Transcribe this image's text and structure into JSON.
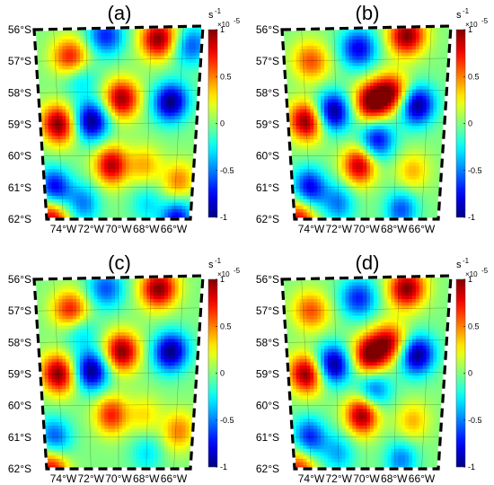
{
  "figure": {
    "panels": [
      {
        "label": "(a)",
        "blobs": [
          {
            "lon": -74.0,
            "lat": -59.0,
            "v": 1.0
          },
          {
            "lon": -71.8,
            "lat": -58.9,
            "v": -1.0
          },
          {
            "lon": -69.8,
            "lat": -58.2,
            "v": 0.95
          },
          {
            "lon": -66.6,
            "lat": -58.3,
            "v": -1.0
          },
          {
            "lon": -70.8,
            "lat": -56.2,
            "v": -0.7
          },
          {
            "lon": -67.5,
            "lat": -56.3,
            "v": 1.0
          },
          {
            "lon": -65.5,
            "lat": -56.5,
            "v": -0.6
          },
          {
            "lon": -73.0,
            "lat": -56.9,
            "v": 0.8
          },
          {
            "lon": -72.5,
            "lat": -57.5,
            "v": -0.4
          },
          {
            "lon": -70.5,
            "lat": -60.3,
            "v": 0.9
          },
          {
            "lon": -74.5,
            "lat": -61.0,
            "v": -0.8
          },
          {
            "lon": -74.8,
            "lat": -62.0,
            "v": 0.9
          },
          {
            "lon": -72.5,
            "lat": -61.5,
            "v": -0.5
          },
          {
            "lon": -68.0,
            "lat": -61.5,
            "v": -0.3
          },
          {
            "lon": -65.8,
            "lat": -60.8,
            "v": 0.5
          },
          {
            "lon": -65.8,
            "lat": -62.0,
            "v": -0.8
          },
          {
            "lon": -68.2,
            "lat": -60.3,
            "v": 0.4
          }
        ]
      },
      {
        "label": "(b)",
        "blobs": [
          {
            "lon": -74.0,
            "lat": -58.9,
            "v": 1.0
          },
          {
            "lon": -72.2,
            "lat": -58.6,
            "v": -1.0
          },
          {
            "lon": -69.7,
            "lat": -58.3,
            "v": 1.0
          },
          {
            "lon": -68.4,
            "lat": -58.0,
            "v": 0.9
          },
          {
            "lon": -66.7,
            "lat": -58.4,
            "v": -1.0
          },
          {
            "lon": -70.5,
            "lat": -56.6,
            "v": -0.8
          },
          {
            "lon": -67.5,
            "lat": -56.2,
            "v": 1.0
          },
          {
            "lon": -73.5,
            "lat": -57.0,
            "v": 0.6
          },
          {
            "lon": -69.3,
            "lat": -59.5,
            "v": -0.8
          },
          {
            "lon": -70.5,
            "lat": -60.3,
            "v": 0.9
          },
          {
            "lon": -74.0,
            "lat": -61.0,
            "v": -0.8
          },
          {
            "lon": -74.8,
            "lat": -62.0,
            "v": 0.8
          },
          {
            "lon": -66.8,
            "lat": -60.5,
            "v": 0.4
          },
          {
            "lon": -67.5,
            "lat": -61.7,
            "v": -0.6
          },
          {
            "lon": -72.0,
            "lat": -61.5,
            "v": -0.5
          }
        ]
      },
      {
        "label": "(c)",
        "blobs": [
          {
            "lon": -74.0,
            "lat": -59.0,
            "v": 1.0
          },
          {
            "lon": -71.8,
            "lat": -58.9,
            "v": -1.0
          },
          {
            "lon": -69.8,
            "lat": -58.3,
            "v": 1.0
          },
          {
            "lon": -66.6,
            "lat": -58.3,
            "v": -1.0
          },
          {
            "lon": -70.8,
            "lat": -56.3,
            "v": -0.6
          },
          {
            "lon": -67.5,
            "lat": -56.3,
            "v": 1.0
          },
          {
            "lon": -73.0,
            "lat": -57.0,
            "v": 0.8
          },
          {
            "lon": -72.5,
            "lat": -57.6,
            "v": -0.4
          },
          {
            "lon": -70.5,
            "lat": -60.3,
            "v": 0.7
          },
          {
            "lon": -74.5,
            "lat": -61.0,
            "v": -0.6
          },
          {
            "lon": -74.8,
            "lat": -62.0,
            "v": 0.8
          },
          {
            "lon": -68.0,
            "lat": -61.5,
            "v": -0.3
          },
          {
            "lon": -65.8,
            "lat": -60.8,
            "v": 0.5
          },
          {
            "lon": -68.2,
            "lat": -60.3,
            "v": 0.3
          }
        ]
      },
      {
        "label": "(d)",
        "blobs": [
          {
            "lon": -74.0,
            "lat": -59.0,
            "v": 1.0
          },
          {
            "lon": -72.2,
            "lat": -58.7,
            "v": -1.0
          },
          {
            "lon": -69.8,
            "lat": -58.4,
            "v": 1.0
          },
          {
            "lon": -68.5,
            "lat": -58.0,
            "v": 0.8
          },
          {
            "lon": -66.7,
            "lat": -58.4,
            "v": -1.0
          },
          {
            "lon": -70.5,
            "lat": -56.6,
            "v": -0.7
          },
          {
            "lon": -67.5,
            "lat": -56.3,
            "v": 1.0
          },
          {
            "lon": -73.5,
            "lat": -57.0,
            "v": 0.6
          },
          {
            "lon": -69.5,
            "lat": -59.5,
            "v": -0.6
          },
          {
            "lon": -70.3,
            "lat": -60.3,
            "v": 1.0
          },
          {
            "lon": -74.0,
            "lat": -61.0,
            "v": -0.7
          },
          {
            "lon": -74.8,
            "lat": -62.0,
            "v": 0.7
          },
          {
            "lon": -66.8,
            "lat": -60.5,
            "v": 0.4
          },
          {
            "lon": -67.5,
            "lat": -61.7,
            "v": -0.5
          },
          {
            "lon": -72.0,
            "lat": -61.5,
            "v": -0.4
          }
        ]
      }
    ],
    "lat_ticks": [
      "56°S",
      "57°S",
      "58°S",
      "59°S",
      "60°S",
      "61°S",
      "62°S"
    ],
    "lat_values": [
      -56,
      -57,
      -58,
      -59,
      -60,
      -61,
      -62
    ],
    "lon_ticks": [
      "74°W",
      "72°W",
      "70°W",
      "68°W",
      "66°W"
    ],
    "lon_values": [
      -74,
      -72,
      -70,
      -68,
      -66
    ],
    "colorbar": {
      "unit": "s",
      "unit_exp": "-1",
      "scale_base": "×10",
      "scale_exp": "-5",
      "ticks": [
        "1",
        "0.5",
        "0",
        "-0.5",
        "-1"
      ],
      "tick_values": [
        1,
        0.5,
        0,
        -0.5,
        -1
      ],
      "range": [
        -1,
        1
      ],
      "colormap": "jet"
    }
  }
}
